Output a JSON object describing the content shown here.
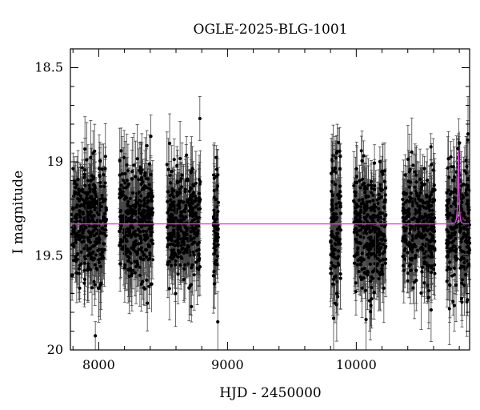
{
  "chart_data": {
    "type": "scatter",
    "title": "OGLE-2025-BLG-1001",
    "xlabel": "HJD - 2450000",
    "ylabel": "I magnitude",
    "xlim": [
      7780,
      10880
    ],
    "ylim": [
      20.0,
      18.4
    ],
    "y_inverted": true,
    "grid": false,
    "x_ticks": [
      8000,
      9000,
      10000
    ],
    "x_tick_labels": [
      "8000",
      "9000",
      "10000"
    ],
    "y_ticks": [
      18.5,
      19,
      19.5,
      20
    ],
    "y_tick_labels": [
      "18.5",
      "19",
      "19.5",
      "20"
    ],
    "baseline_mag": 19.33,
    "seasons": [
      {
        "start": 7790,
        "end": 8060,
        "mean_mag": 19.3,
        "scatter_mag": 0.15
      },
      {
        "start": 8160,
        "end": 8420,
        "mean_mag": 19.32,
        "scatter_mag": 0.15
      },
      {
        "start": 8530,
        "end": 8790,
        "mean_mag": 19.32,
        "scatter_mag": 0.16
      },
      {
        "start": 8890,
        "end": 8930,
        "mean_mag": 19.33,
        "scatter_mag": 0.14
      },
      {
        "start": 9800,
        "end": 9880,
        "mean_mag": 19.33,
        "scatter_mag": 0.18
      },
      {
        "start": 9980,
        "end": 10230,
        "mean_mag": 19.36,
        "scatter_mag": 0.15
      },
      {
        "start": 10360,
        "end": 10610,
        "mean_mag": 19.35,
        "scatter_mag": 0.15
      },
      {
        "start": 10700,
        "end": 10880,
        "mean_mag": 19.34,
        "scatter_mag": 0.16
      }
    ],
    "series": [
      {
        "name": "",
        "kind": "points_with_errorbars",
        "color": "#000000",
        "sample": [
          {
            "x": 7800,
            "y": 19.25,
            "err": 0.1
          },
          {
            "x": 7900,
            "y": 19.35,
            "err": 0.12
          },
          {
            "x": 8000,
            "y": 19.28,
            "err": 0.11
          },
          {
            "x": 8200,
            "y": 19.4,
            "err": 0.12
          },
          {
            "x": 8300,
            "y": 19.22,
            "err": 0.11
          },
          {
            "x": 8410,
            "y": 19.65,
            "err": 0.15
          },
          {
            "x": 8600,
            "y": 19.3,
            "err": 0.11
          },
          {
            "x": 8700,
            "y": 19.45,
            "err": 0.12
          },
          {
            "x": 8910,
            "y": 19.2,
            "err": 0.1
          },
          {
            "x": 9820,
            "y": 19.05,
            "err": 0.12
          },
          {
            "x": 9850,
            "y": 19.7,
            "err": 0.14
          },
          {
            "x": 10050,
            "y": 19.35,
            "err": 0.12
          },
          {
            "x": 10150,
            "y": 19.5,
            "err": 0.12
          },
          {
            "x": 10450,
            "y": 19.3,
            "err": 0.12
          },
          {
            "x": 10550,
            "y": 19.55,
            "err": 0.13
          },
          {
            "x": 10790,
            "y": 18.93,
            "err": 0.06
          },
          {
            "x": 10800,
            "y": 18.9,
            "err": 0.06
          },
          {
            "x": 10850,
            "y": 19.6,
            "err": 0.14
          }
        ]
      },
      {
        "name": "",
        "kind": "model_line",
        "color": "#e040e0",
        "peak_x": 10793,
        "peak_mag": 18.94,
        "baseline_mag": 19.33,
        "tE_days": 12
      }
    ]
  }
}
